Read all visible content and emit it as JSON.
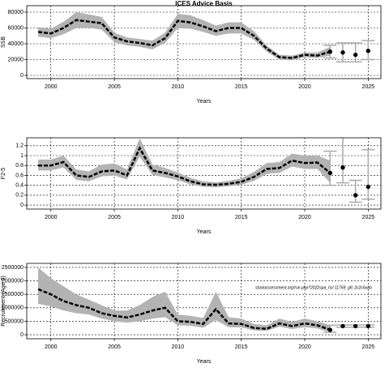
{
  "chart_data": [
    {
      "type": "band-line",
      "title": "ICES Advice Basis",
      "xlabel": "Years",
      "ylabel": "SSB",
      "x": [
        1999,
        2000,
        2001,
        2002,
        2003,
        2004,
        2005,
        2006,
        2007,
        2008,
        2009,
        2010,
        2011,
        2012,
        2013,
        2014,
        2015,
        2016,
        2017,
        2018,
        2019,
        2020,
        2021,
        2022
      ],
      "values": [
        55000,
        53000,
        60000,
        70000,
        68000,
        66000,
        48000,
        43000,
        41000,
        38000,
        47000,
        69000,
        67000,
        62000,
        56000,
        60000,
        60000,
        50000,
        34000,
        23000,
        22000,
        26000,
        25000,
        30000
      ],
      "upper": [
        61000,
        59000,
        68000,
        80000,
        77000,
        74000,
        54000,
        48000,
        46000,
        44000,
        54000,
        78000,
        76000,
        70000,
        63000,
        67000,
        67000,
        56000,
        38000,
        26000,
        25000,
        29000,
        29000,
        36000
      ],
      "lower": [
        49000,
        47000,
        52000,
        60000,
        60000,
        58000,
        42000,
        38000,
        36000,
        33000,
        41000,
        60000,
        59000,
        55000,
        50000,
        53000,
        53000,
        45000,
        30000,
        20000,
        19000,
        23000,
        22000,
        25000
      ],
      "forecast": {
        "x": [
          2022,
          2023,
          2024,
          2025
        ],
        "values": [
          30000,
          29000,
          26000,
          31000
        ],
        "lower": [
          22000,
          17000,
          17000,
          20000
        ],
        "upper": [
          38000,
          41000,
          41000,
          44000
        ]
      },
      "color": "#000000",
      "band_color": "#b3b3b3",
      "error_color": "#aaaaaa",
      "xlim": [
        1998.1,
        2026
      ],
      "xticks": [
        2000,
        2005,
        2010,
        2015,
        2020,
        2025
      ],
      "ylim": [
        -4100,
        88200
      ],
      "yticks": [
        0,
        20000,
        40000,
        60000,
        80000
      ],
      "grid": true
    },
    {
      "type": "band-line",
      "xlabel": "Years",
      "ylabel": "F2-5",
      "x": [
        1999,
        2000,
        2001,
        2002,
        2003,
        2004,
        2005,
        2006,
        2007,
        2008,
        2009,
        2010,
        2011,
        2012,
        2013,
        2014,
        2015,
        2016,
        2017,
        2018,
        2019,
        2020,
        2021,
        2022
      ],
      "values": [
        0.8,
        0.8,
        0.87,
        0.6,
        0.57,
        0.68,
        0.7,
        0.6,
        1.15,
        0.7,
        0.65,
        0.58,
        0.48,
        0.42,
        0.41,
        0.43,
        0.47,
        0.57,
        0.73,
        0.75,
        0.9,
        0.85,
        0.86,
        0.65
      ],
      "upper": [
        0.92,
        0.92,
        1.0,
        0.72,
        0.68,
        0.82,
        0.84,
        0.72,
        1.35,
        0.82,
        0.75,
        0.66,
        0.55,
        0.48,
        0.46,
        0.49,
        0.54,
        0.67,
        0.85,
        0.87,
        1.04,
        1.0,
        1.0,
        0.9
      ],
      "lower": [
        0.7,
        0.7,
        0.76,
        0.51,
        0.48,
        0.58,
        0.6,
        0.52,
        0.98,
        0.61,
        0.56,
        0.5,
        0.42,
        0.37,
        0.36,
        0.38,
        0.41,
        0.49,
        0.63,
        0.65,
        0.78,
        0.73,
        0.73,
        0.45
      ],
      "forecast": {
        "x": [
          2022,
          2023,
          2024,
          2025
        ],
        "values": [
          0.65,
          0.76,
          0.2,
          0.37
        ],
        "lower": [
          0.4,
          0.45,
          0.06,
          0.12
        ],
        "upper": [
          1.09,
          1.4,
          0.5,
          1.12
        ]
      },
      "color": "#000000",
      "band_color": "#b3b3b3",
      "error_color": "#aaaaaa",
      "xlim": [
        1998.1,
        2026
      ],
      "xticks": [
        2000,
        2005,
        2010,
        2015,
        2020,
        2025
      ],
      "ylim": [
        -0.08,
        1.36
      ],
      "yticks": [
        0,
        0.2,
        0.4,
        0.6,
        0.8,
        1,
        {
          "value": 1.2,
          "label": "1.2"
        }
      ],
      "grid": true
    },
    {
      "type": "band-line",
      "xlabel": "Years",
      "ylabel": "Recruitment (Age 0)",
      "annotation": "stockassessment.org/run.php?2022spa_hcl 11768_gfc 2c2c6abb",
      "x": [
        1999,
        2000,
        2001,
        2002,
        2003,
        2004,
        2005,
        2006,
        2007,
        2008,
        2009,
        2010,
        2011,
        2012,
        2013,
        2014,
        2015,
        2016,
        2017,
        2018,
        2019,
        2020,
        2021,
        2022
      ],
      "values": [
        1690000,
        1500000,
        1250000,
        1100000,
        1000000,
        800000,
        700000,
        640000,
        750000,
        900000,
        1000000,
        500000,
        480000,
        400000,
        950000,
        420000,
        400000,
        250000,
        220000,
        420000,
        320000,
        420000,
        350000,
        180000
      ],
      "upper": [
        2500000,
        2100000,
        1800000,
        1500000,
        1300000,
        1100000,
        900000,
        900000,
        1100000,
        1400000,
        1600000,
        750000,
        700000,
        620000,
        1600000,
        650000,
        600000,
        400000,
        350000,
        600000,
        480000,
        600000,
        500000,
        350000
      ],
      "lower": [
        1150000,
        1050000,
        900000,
        800000,
        750000,
        600000,
        500000,
        450000,
        500000,
        600000,
        650000,
        350000,
        330000,
        260000,
        550000,
        280000,
        270000,
        160000,
        140000,
        300000,
        210000,
        280000,
        230000,
        90000
      ],
      "forecast": {
        "x": [
          2022,
          2023,
          2024,
          2025
        ],
        "values": [
          180000,
          320000,
          320000,
          320000
        ],
        "lower": [
          90000,
          280000,
          280000,
          280000
        ],
        "upper": [
          350000,
          360000,
          360000,
          360000
        ]
      },
      "color": "#000000",
      "band_color": "#b3b3b3",
      "error_color": "#aaaaaa",
      "xlim": [
        1998.1,
        2026
      ],
      "xticks": [
        2000,
        2005,
        2010,
        2015,
        2020,
        2025
      ],
      "ylim": [
        -150000,
        2650000
      ],
      "yticks": [
        0,
        500000,
        1000000,
        1500000,
        2000000,
        2500000
      ],
      "grid": true
    }
  ]
}
